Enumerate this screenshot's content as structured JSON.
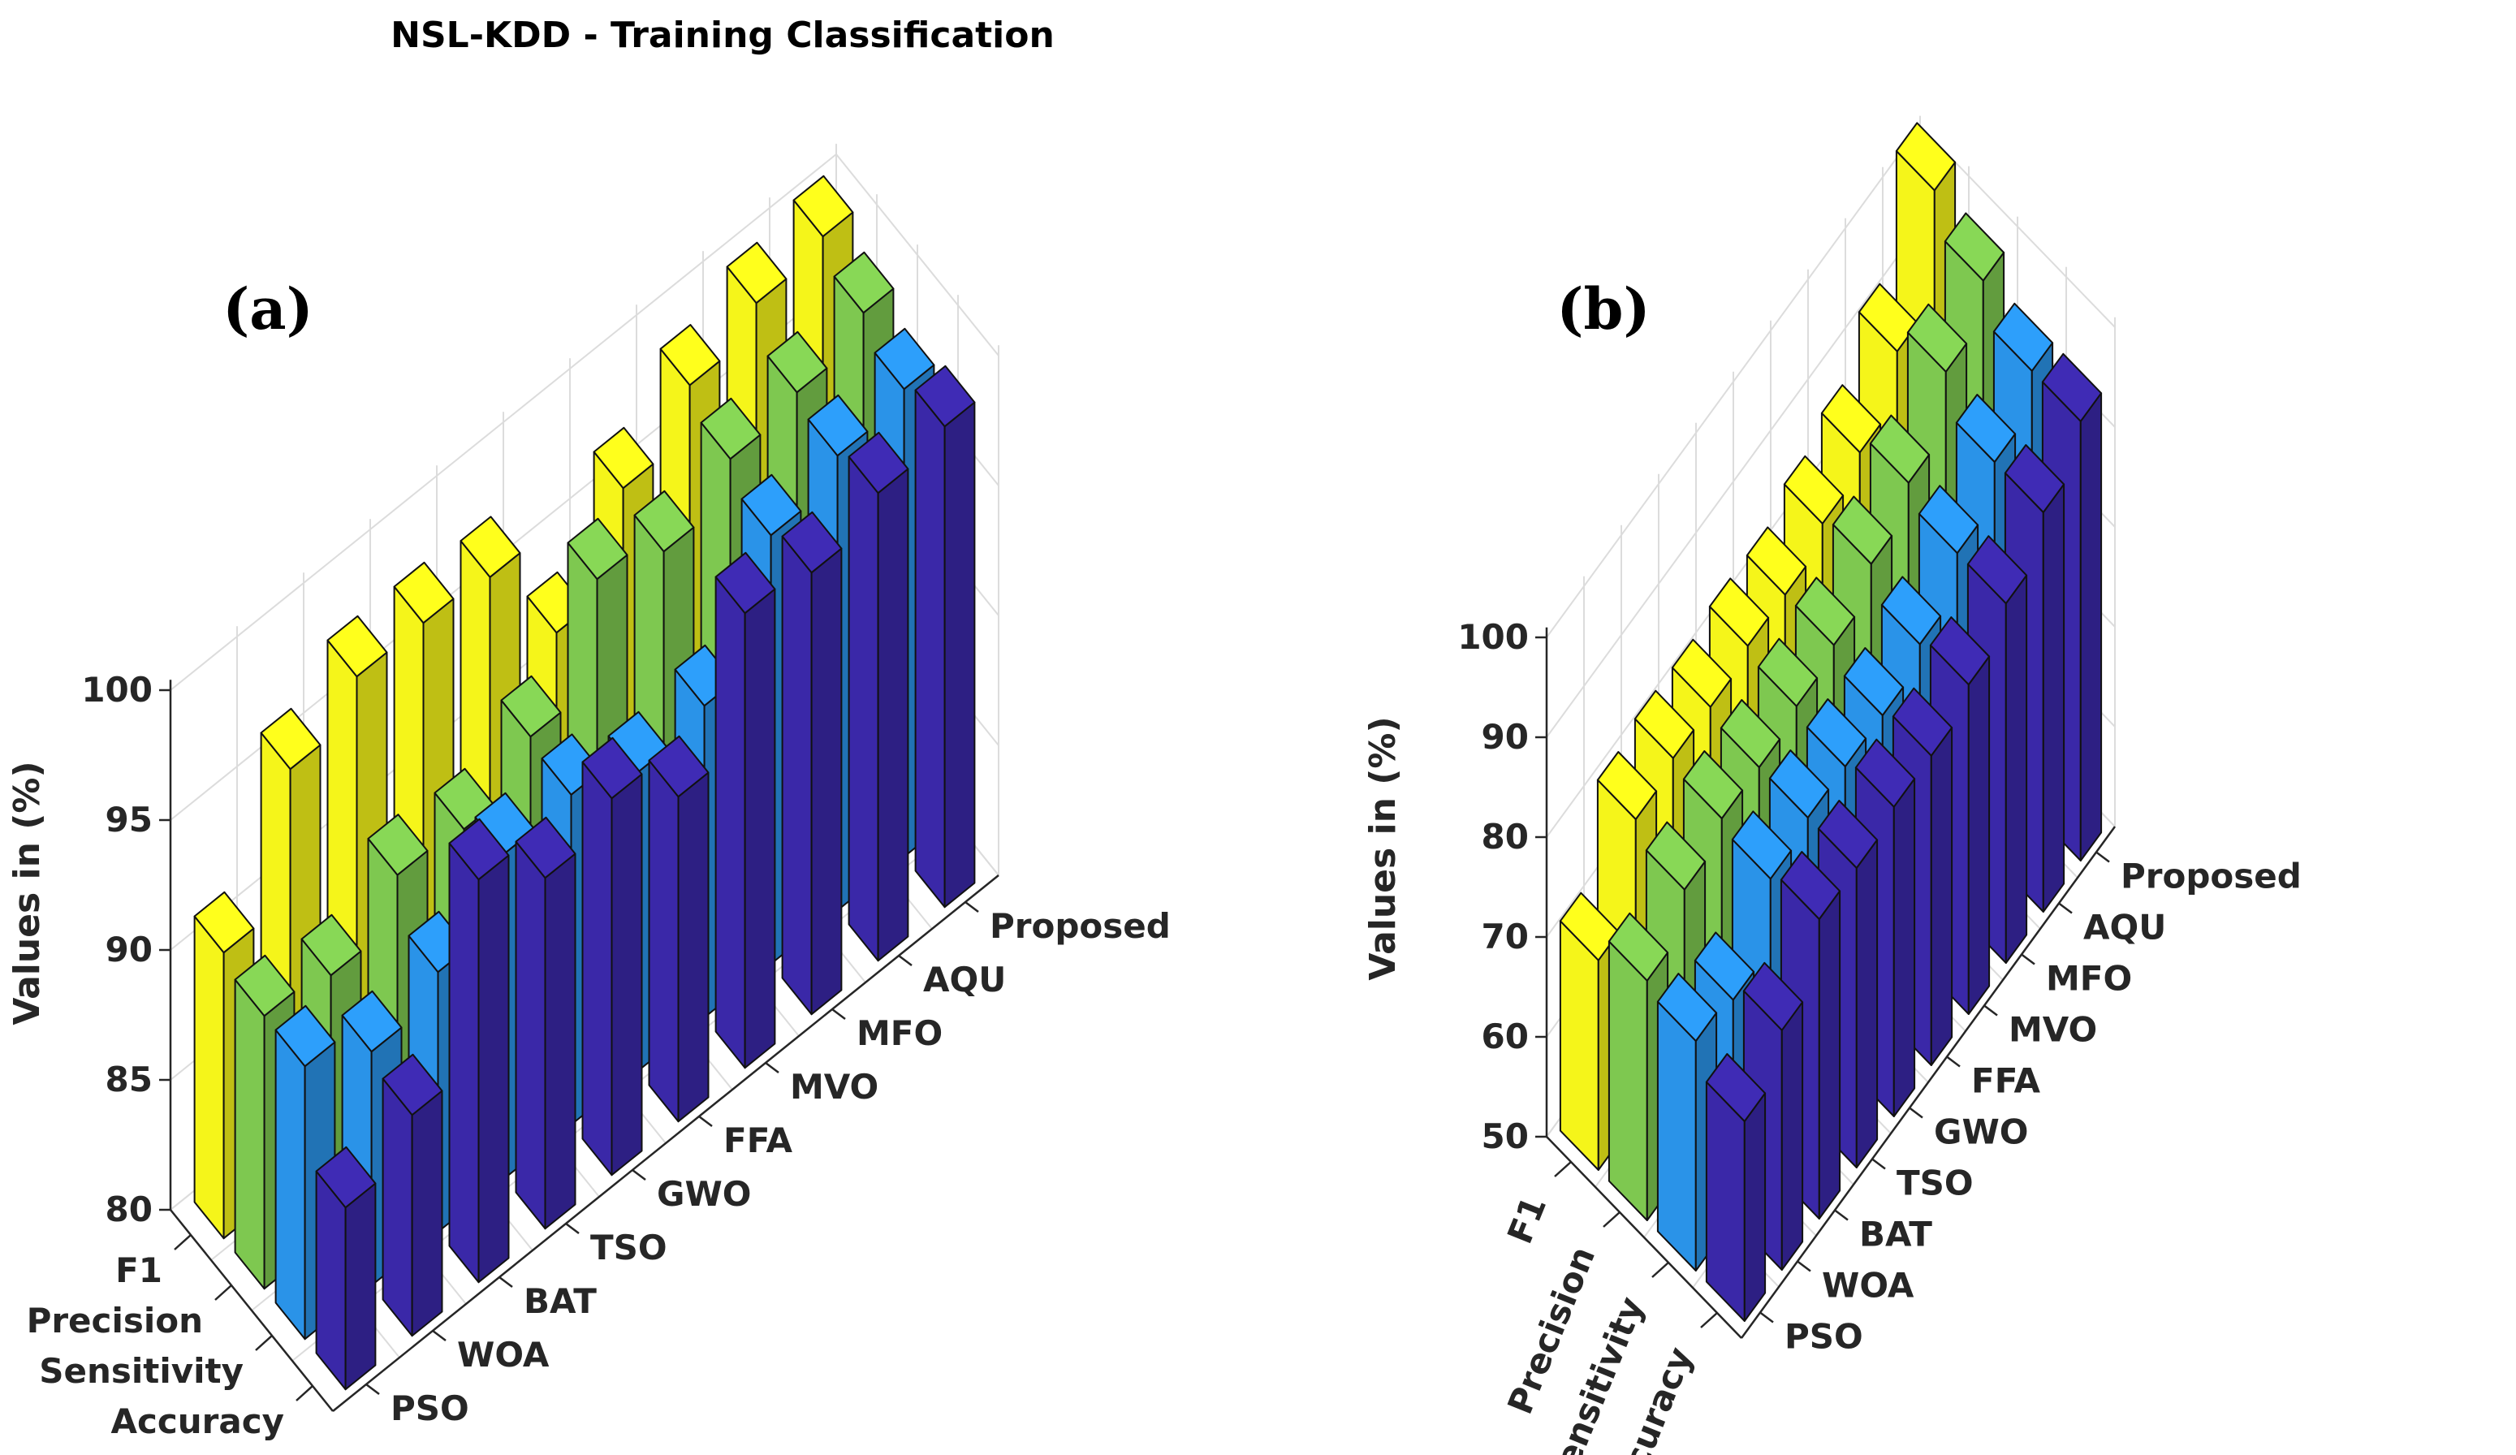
{
  "figure": {
    "title": "NSL-KDD - Training Classification"
  },
  "chart_data": [
    {
      "type": "bar",
      "label": "(a)",
      "title": "NSL-KDD - Training Classification",
      "zlabel": "Values in (%)",
      "zlim": [
        80,
        100
      ],
      "zticks": [
        "80",
        "85",
        "90",
        "95",
        "100"
      ],
      "metrics": [
        "F1",
        "Precision",
        "Sensitivity",
        "Accuracy"
      ],
      "algorithms": [
        "PSO",
        "WOA",
        "BAT",
        "TSO",
        "GWO",
        "FFA",
        "MVO",
        "MFO",
        "AQU",
        "Proposed"
      ],
      "metric_colors": [
        "#f5f51a",
        "#7ec850",
        "#2a93e8",
        "#3a28a8"
      ],
      "series": [
        {
          "name": "F1",
          "values": [
            91,
            96,
            97.5,
            97.5,
            97.2,
            93,
            96.5,
            98.4,
            99.5,
            100
          ]
        },
        {
          "name": "Precision",
          "values": [
            90.5,
            90,
            91.8,
            91.5,
            93,
            97,
            96,
            97.5,
            98,
            99
          ]
        },
        {
          "name": "Sensitivity",
          "values": [
            90.5,
            89,
            90,
            92.5,
            92.7,
            91.5,
            92,
            96.5,
            97.5,
            98
          ]
        },
        {
          "name": "Accuracy",
          "values": [
            87,
            88.5,
            95.5,
            93.5,
            94.5,
            92.5,
            97.5,
            97,
            98,
            98.5
          ]
        }
      ]
    },
    {
      "type": "bar",
      "label": "(b)",
      "title": "",
      "zlabel": "Values in (%)",
      "zlim": [
        50,
        100
      ],
      "zticks": [
        "50",
        "60",
        "70",
        "80",
        "90",
        "100"
      ],
      "metrics": [
        "F1",
        "Precision",
        "Sensitivity",
        "Accuracy"
      ],
      "algorithms": [
        "PSO",
        "WOA",
        "BAT",
        "TSO",
        "GWO",
        "FFA",
        "MVO",
        "MFO",
        "AQU",
        "Proposed"
      ],
      "metric_colors": [
        "#f5f51a",
        "#7ec850",
        "#2a93e8",
        "#3a28a8"
      ],
      "series": [
        {
          "name": "F1",
          "values": [
            71,
            80,
            81,
            81,
            82,
            82,
            84,
            86,
            91,
            102
          ]
        },
        {
          "name": "Precision",
          "values": [
            74,
            78,
            80,
            80,
            81,
            82,
            85,
            88,
            94,
            98
          ]
        },
        {
          "name": "Sensitivity",
          "values": [
            73,
            72,
            79,
            80,
            80,
            80,
            82,
            86,
            90,
            94
          ]
        },
        {
          "name": "Accuracy",
          "values": [
            70,
            74,
            80,
            80,
            81,
            81,
            83,
            86,
            90,
            94
          ]
        }
      ]
    }
  ]
}
